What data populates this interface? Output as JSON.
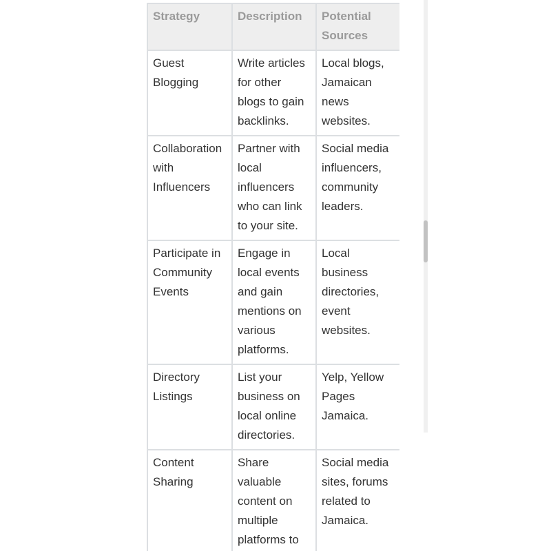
{
  "table": {
    "headers": [
      "Strategy",
      "Description",
      "Potential Sources"
    ],
    "rows": [
      [
        "Guest Blogging",
        "Write articles for other blogs to gain backlinks.",
        "Local blogs, Jamaican news websites."
      ],
      [
        "Collaboration with Influencers",
        "Partner with local influencers who can link to your site.",
        "Social media influencers, community leaders."
      ],
      [
        "Participate in Community Events",
        "Engage in local events and gain mentions on various platforms.",
        "Local business directories, event websites."
      ],
      [
        "Directory Listings",
        "List your business on local online directories.",
        "Yelp, Yellow Pages Jamaica."
      ],
      [
        "Content Sharing",
        "Share valuable content on multiple platforms to earn",
        "Social media sites, forums related to Jamaica."
      ]
    ]
  },
  "scrollbar": {
    "position_fraction": 0.51
  }
}
